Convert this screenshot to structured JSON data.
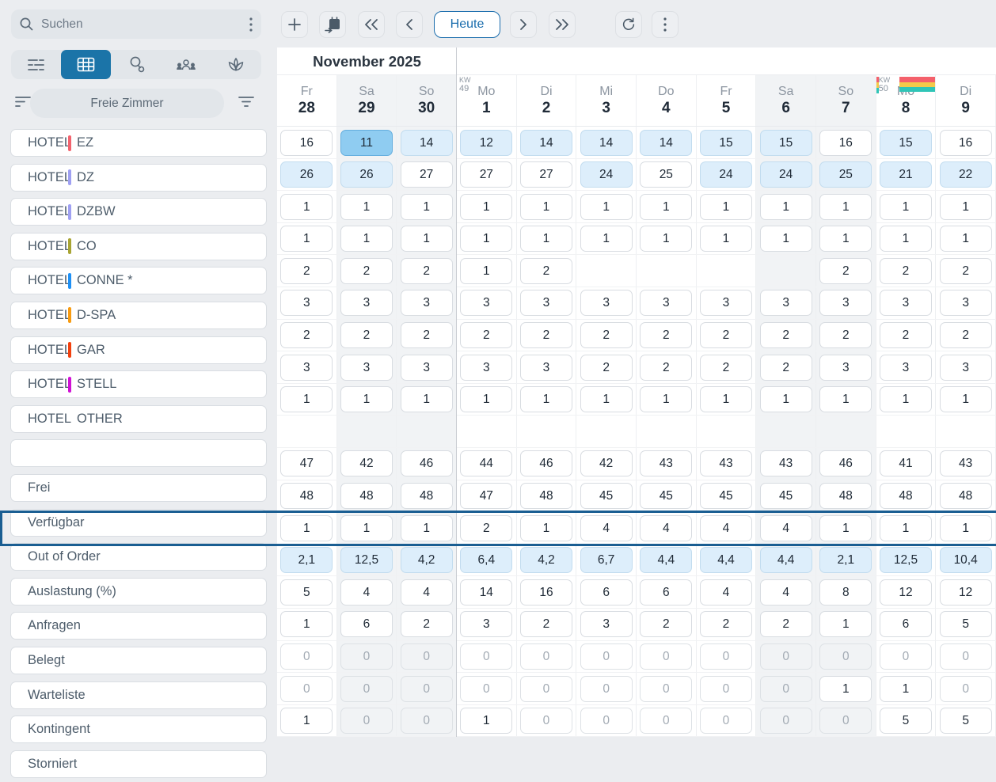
{
  "search": {
    "placeholder": "Suchen"
  },
  "tabs": {
    "active": "grid-view",
    "items": [
      "list-view",
      "grid-view",
      "activity-search",
      "guests",
      "spa"
    ]
  },
  "filter_bar": {
    "label": "Freie Zimmer"
  },
  "toolbar": {
    "today_label": "Heute"
  },
  "month_header": {
    "label": "November 2025"
  },
  "icons": {
    "search": "magnifier",
    "kebab": "three-vertical-dots",
    "add": "plus",
    "goto-date": "calendar-arrow",
    "fast-back": "double-chevron-left",
    "back": "chevron-left",
    "forward": "chevron-right",
    "fast-forward": "double-chevron-right",
    "refresh": "circular-arrow",
    "sort": "three-lines-left",
    "filter": "three-lines-funnel"
  },
  "colors": {
    "accent": "#1b74a8",
    "today_border": "#1a6dad",
    "cell_highlight": "#ddeefb",
    "cell_selected": "#8fccf1",
    "out_of_order_border": "#1a5e92",
    "kw_stripe_red": "#f4606b",
    "kw_stripe_yellow": "#f3ca4a",
    "kw_stripe_teal": "#2fc5b7"
  },
  "grid": {
    "columns": [
      {
        "day": "Fr",
        "date": "28",
        "weekend": false
      },
      {
        "day": "Sa",
        "date": "29",
        "weekend": true
      },
      {
        "day": "So",
        "date": "30",
        "weekend": true
      },
      {
        "day": "Mo",
        "date": "1",
        "weekend": false,
        "kw": "49"
      },
      {
        "day": "Di",
        "date": "2",
        "weekend": false
      },
      {
        "day": "Mi",
        "date": "3",
        "weekend": false
      },
      {
        "day": "Do",
        "date": "4",
        "weekend": false
      },
      {
        "day": "Fr",
        "date": "5",
        "weekend": false
      },
      {
        "day": "Sa",
        "date": "6",
        "weekend": true
      },
      {
        "day": "So",
        "date": "7",
        "weekend": true
      },
      {
        "day": "Mo",
        "date": "8",
        "weekend": false,
        "kw": "50",
        "kw_stripes": true
      },
      {
        "day": "Di",
        "date": "9",
        "weekend": false
      }
    ],
    "rows": [
      {
        "kind": "room",
        "prefix": "HOTEL",
        "name": "EZ",
        "stripe": "#f2636e",
        "values": [
          "16",
          "11",
          "14",
          "12",
          "14",
          "14",
          "14",
          "15",
          "15",
          "16",
          "15",
          "16"
        ],
        "styles": [
          "p",
          "s",
          "h",
          "h",
          "h",
          "h",
          "h",
          "h",
          "h",
          "p",
          "h",
          "p"
        ]
      },
      {
        "kind": "room",
        "prefix": "HOTEL",
        "name": "DZ",
        "stripe": "#9fa0f2",
        "values": [
          "26",
          "26",
          "27",
          "27",
          "27",
          "24",
          "25",
          "24",
          "24",
          "25",
          "21",
          "22"
        ],
        "styles": [
          "h",
          "h",
          "p",
          "p",
          "p",
          "h",
          "p",
          "h",
          "h",
          "h",
          "h",
          "h"
        ]
      },
      {
        "kind": "room",
        "prefix": "HOTEL",
        "name": "DZBW",
        "stripe": "#9fa0f2",
        "values": [
          "1",
          "1",
          "1",
          "1",
          "1",
          "1",
          "1",
          "1",
          "1",
          "1",
          "1",
          "1"
        ],
        "styles": [
          "p",
          "p",
          "p",
          "p",
          "p",
          "p",
          "p",
          "p",
          "p",
          "p",
          "p",
          "p"
        ]
      },
      {
        "kind": "room",
        "prefix": "HOTEL",
        "name": "CO",
        "stripe": "#a8a433",
        "values": [
          "1",
          "1",
          "1",
          "1",
          "1",
          "1",
          "1",
          "1",
          "1",
          "1",
          "1",
          "1"
        ],
        "styles": [
          "p",
          "p",
          "p",
          "p",
          "p",
          "p",
          "p",
          "p",
          "p",
          "p",
          "p",
          "p"
        ]
      },
      {
        "kind": "room",
        "prefix": "HOTEL",
        "name": "CONNE *",
        "stripe": "#1e90f5",
        "values": [
          "2",
          "2",
          "2",
          "1",
          "2",
          "",
          "",
          "",
          "",
          "2",
          "2",
          "2"
        ],
        "styles": [
          "p",
          "p",
          "p",
          "p",
          "p",
          "e",
          "e",
          "e",
          "e",
          "p",
          "p",
          "p"
        ]
      },
      {
        "kind": "room",
        "prefix": "HOTEL",
        "name": "D-SPA",
        "stripe": "#f79b12",
        "values": [
          "3",
          "3",
          "3",
          "3",
          "3",
          "3",
          "3",
          "3",
          "3",
          "3",
          "3",
          "3"
        ],
        "styles": [
          "p",
          "p",
          "p",
          "p",
          "p",
          "p",
          "p",
          "p",
          "p",
          "p",
          "p",
          "p"
        ]
      },
      {
        "kind": "room",
        "prefix": "HOTEL",
        "name": "GAR",
        "stripe": "#f2410e",
        "values": [
          "2",
          "2",
          "2",
          "2",
          "2",
          "2",
          "2",
          "2",
          "2",
          "2",
          "2",
          "2"
        ],
        "styles": [
          "p",
          "p",
          "p",
          "p",
          "p",
          "p",
          "p",
          "p",
          "p",
          "p",
          "p",
          "p"
        ]
      },
      {
        "kind": "room",
        "prefix": "HOTEL",
        "name": "STELL",
        "stripe": "#d011d4",
        "values": [
          "3",
          "3",
          "3",
          "3",
          "3",
          "2",
          "2",
          "2",
          "2",
          "3",
          "3",
          "3"
        ],
        "styles": [
          "p",
          "p",
          "p",
          "p",
          "p",
          "p",
          "p",
          "p",
          "p",
          "p",
          "p",
          "p"
        ]
      },
      {
        "kind": "room",
        "prefix": "HOTEL",
        "name": "OTHER",
        "stripe": null,
        "values": [
          "1",
          "1",
          "1",
          "1",
          "1",
          "1",
          "1",
          "1",
          "1",
          "1",
          "1",
          "1"
        ],
        "styles": [
          "p",
          "p",
          "p",
          "p",
          "p",
          "p",
          "p",
          "p",
          "p",
          "p",
          "p",
          "p"
        ]
      },
      {
        "kind": "spacer",
        "name": "",
        "values": [
          "",
          "",
          "",
          "",
          "",
          "",
          "",
          "",
          "",
          "",
          "",
          ""
        ],
        "styles": [
          "e",
          "e",
          "e",
          "e",
          "e",
          "e",
          "e",
          "e",
          "e",
          "e",
          "e",
          "e"
        ]
      },
      {
        "kind": "summary",
        "name": "Frei",
        "values": [
          "47",
          "42",
          "46",
          "44",
          "46",
          "42",
          "43",
          "43",
          "43",
          "46",
          "41",
          "43"
        ],
        "styles": [
          "p",
          "p",
          "p",
          "p",
          "p",
          "p",
          "p",
          "p",
          "p",
          "p",
          "p",
          "p"
        ]
      },
      {
        "kind": "summary",
        "name": "Verfügbar",
        "values": [
          "48",
          "48",
          "48",
          "47",
          "48",
          "45",
          "45",
          "45",
          "45",
          "48",
          "48",
          "48"
        ],
        "styles": [
          "p",
          "p",
          "p",
          "p",
          "p",
          "p",
          "p",
          "p",
          "p",
          "p",
          "p",
          "p"
        ]
      },
      {
        "kind": "summary",
        "name": "Out of Order",
        "highlight": true,
        "values": [
          "1",
          "1",
          "1",
          "2",
          "1",
          "4",
          "4",
          "4",
          "4",
          "1",
          "1",
          "1"
        ],
        "styles": [
          "p",
          "p",
          "p",
          "p",
          "p",
          "p",
          "p",
          "p",
          "p",
          "p",
          "p",
          "p"
        ]
      },
      {
        "kind": "summary",
        "name": "Auslastung (%)",
        "values": [
          "2,1",
          "12,5",
          "4,2",
          "6,4",
          "4,2",
          "6,7",
          "4,4",
          "4,4",
          "4,4",
          "2,1",
          "12,5",
          "10,4"
        ],
        "styles": [
          "h",
          "h",
          "h",
          "h",
          "h",
          "h",
          "h",
          "h",
          "h",
          "h",
          "h",
          "h"
        ]
      },
      {
        "kind": "summary",
        "name": "Anfragen",
        "values": [
          "5",
          "4",
          "4",
          "14",
          "16",
          "6",
          "6",
          "4",
          "4",
          "8",
          "12",
          "12"
        ],
        "styles": [
          "p",
          "p",
          "p",
          "p",
          "p",
          "p",
          "p",
          "p",
          "p",
          "p",
          "p",
          "p"
        ]
      },
      {
        "kind": "summary",
        "name": "Belegt",
        "values": [
          "1",
          "6",
          "2",
          "3",
          "2",
          "3",
          "2",
          "2",
          "2",
          "1",
          "6",
          "5"
        ],
        "styles": [
          "p",
          "p",
          "p",
          "p",
          "p",
          "p",
          "p",
          "p",
          "p",
          "p",
          "p",
          "p"
        ]
      },
      {
        "kind": "summary",
        "name": "Warteliste",
        "values": [
          "0",
          "0",
          "0",
          "0",
          "0",
          "0",
          "0",
          "0",
          "0",
          "0",
          "0",
          "0"
        ],
        "styles": [
          "z",
          "z",
          "z",
          "z",
          "z",
          "z",
          "z",
          "z",
          "z",
          "z",
          "z",
          "z"
        ]
      },
      {
        "kind": "summary",
        "name": "Kontingent",
        "values": [
          "0",
          "0",
          "0",
          "0",
          "0",
          "0",
          "0",
          "0",
          "0",
          "1",
          "1",
          "0"
        ],
        "styles": [
          "z",
          "z",
          "z",
          "z",
          "z",
          "z",
          "z",
          "z",
          "z",
          "p",
          "p",
          "z"
        ]
      },
      {
        "kind": "summary",
        "name": "Storniert",
        "values": [
          "1",
          "0",
          "0",
          "1",
          "0",
          "0",
          "0",
          "0",
          "0",
          "0",
          "5",
          "5"
        ],
        "styles": [
          "p",
          "z",
          "z",
          "p",
          "z",
          "z",
          "z",
          "z",
          "z",
          "z",
          "p",
          "p"
        ]
      }
    ]
  }
}
